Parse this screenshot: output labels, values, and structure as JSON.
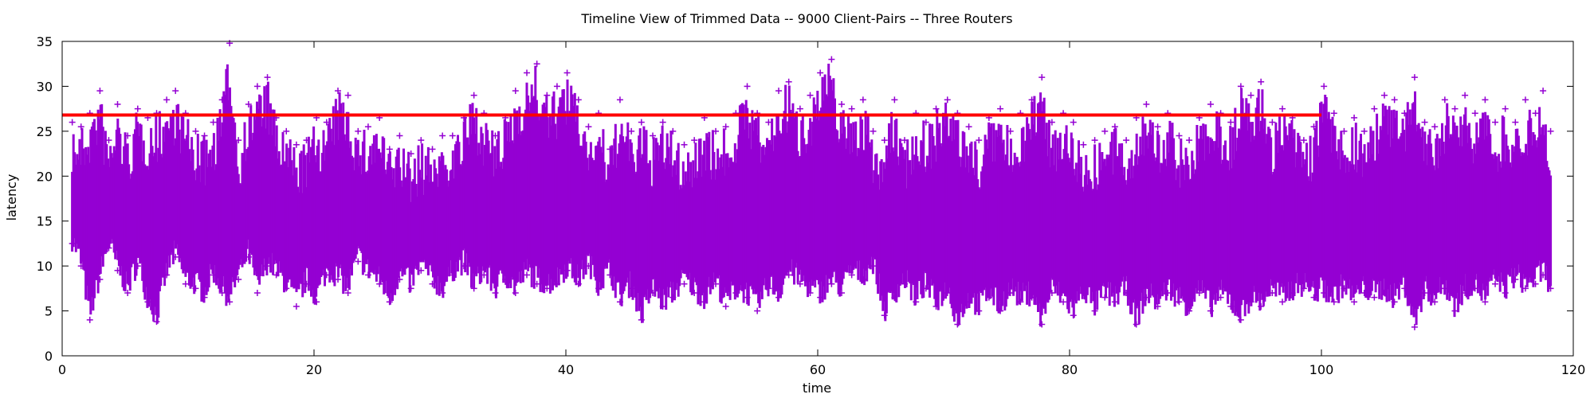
{
  "chart_data": {
    "type": "scatter",
    "title": "Timeline View of Trimmed Data -- 9000 Client-Pairs -- Three Routers",
    "xlabel": "time",
    "ylabel": "latency",
    "xlim": [
      0,
      120
    ],
    "ylim": [
      0,
      35
    ],
    "xticks": [
      "0",
      "20",
      "40",
      "60",
      "80",
      "100",
      "120"
    ],
    "yticks": [
      "0",
      "5",
      "10",
      "15",
      "20",
      "25",
      "30",
      "35"
    ],
    "grid": false,
    "legend": "none",
    "colors": {
      "points": "#9400d3",
      "reference_line": "#ff0000"
    },
    "marker": "plus",
    "x_extent": [
      0.8,
      118.2
    ],
    "reference_line": {
      "y": 26.8,
      "x_start": 0,
      "x_end": 100
    },
    "column_samples": [
      [
        0.8,
        12.5,
        26.0
      ],
      [
        1.5,
        10.0,
        25.5
      ],
      [
        2.2,
        4.0,
        27.0
      ],
      [
        3.0,
        8.5,
        29.5
      ],
      [
        3.7,
        12.0,
        24.0
      ],
      [
        4.4,
        9.5,
        28.0
      ],
      [
        5.2,
        7.0,
        24.5
      ],
      [
        6.0,
        10.0,
        27.5
      ],
      [
        6.8,
        6.0,
        26.5
      ],
      [
        7.5,
        3.8,
        27.0
      ],
      [
        8.3,
        9.0,
        28.5
      ],
      [
        9.0,
        11.0,
        29.5
      ],
      [
        9.8,
        8.0,
        27.0
      ],
      [
        10.6,
        7.5,
        25.0
      ],
      [
        11.3,
        6.5,
        24.5
      ],
      [
        12.0,
        9.0,
        26.0
      ],
      [
        12.7,
        7.0,
        28.5
      ],
      [
        13.3,
        6.0,
        34.8
      ],
      [
        14.0,
        8.5,
        24.0
      ],
      [
        14.8,
        11.0,
        28.0
      ],
      [
        15.5,
        7.0,
        30.0
      ],
      [
        16.3,
        10.0,
        31.0
      ],
      [
        17.0,
        9.0,
        26.5
      ],
      [
        17.8,
        7.5,
        25.0
      ],
      [
        18.6,
        5.5,
        23.5
      ],
      [
        19.4,
        8.0,
        24.0
      ],
      [
        20.2,
        6.0,
        26.5
      ],
      [
        21.0,
        9.0,
        26.0
      ],
      [
        21.9,
        8.5,
        29.5
      ],
      [
        22.7,
        7.0,
        29.0
      ],
      [
        23.5,
        10.5,
        25.0
      ],
      [
        24.3,
        9.0,
        25.5
      ],
      [
        25.2,
        8.0,
        26.5
      ],
      [
        26.0,
        6.0,
        23.0
      ],
      [
        26.8,
        8.5,
        24.5
      ],
      [
        27.7,
        7.5,
        22.5
      ],
      [
        28.5,
        9.5,
        24.0
      ],
      [
        29.4,
        8.0,
        23.0
      ],
      [
        30.2,
        7.0,
        24.5
      ],
      [
        31.0,
        9.0,
        24.5
      ],
      [
        31.9,
        10.0,
        26.5
      ],
      [
        32.7,
        7.5,
        29.0
      ],
      [
        33.5,
        9.0,
        27.0
      ],
      [
        34.4,
        7.0,
        24.5
      ],
      [
        35.2,
        8.5,
        26.5
      ],
      [
        36.0,
        7.0,
        29.5
      ],
      [
        36.9,
        9.0,
        31.5
      ],
      [
        37.7,
        8.0,
        32.5
      ],
      [
        38.5,
        7.5,
        29.0
      ],
      [
        39.3,
        8.0,
        30.0
      ],
      [
        40.1,
        9.5,
        31.5
      ],
      [
        41.0,
        8.0,
        28.5
      ],
      [
        41.8,
        10.0,
        25.5
      ],
      [
        42.6,
        7.5,
        27.0
      ],
      [
        43.5,
        9.0,
        23.0
      ],
      [
        44.3,
        6.0,
        28.5
      ],
      [
        45.2,
        7.5,
        25.0
      ],
      [
        46.0,
        4.0,
        26.0
      ],
      [
        46.9,
        7.0,
        24.5
      ],
      [
        47.7,
        5.5,
        26.0
      ],
      [
        48.5,
        6.5,
        25.0
      ],
      [
        49.4,
        8.0,
        23.5
      ],
      [
        50.2,
        7.0,
        24.0
      ],
      [
        51.0,
        6.0,
        26.5
      ],
      [
        51.9,
        8.0,
        25.0
      ],
      [
        52.7,
        5.5,
        25.5
      ],
      [
        53.5,
        7.0,
        27.0
      ],
      [
        54.4,
        6.5,
        30.0
      ],
      [
        55.2,
        5.0,
        27.0
      ],
      [
        56.1,
        7.5,
        26.0
      ],
      [
        56.9,
        6.5,
        29.5
      ],
      [
        57.7,
        9.0,
        30.5
      ],
      [
        58.6,
        8.0,
        27.5
      ],
      [
        59.4,
        7.0,
        29.0
      ],
      [
        60.2,
        6.5,
        31.5
      ],
      [
        61.1,
        8.0,
        33.0
      ],
      [
        61.9,
        7.0,
        28.0
      ],
      [
        62.7,
        9.0,
        27.5
      ],
      [
        63.6,
        8.5,
        28.5
      ],
      [
        64.4,
        10.0,
        25.0
      ],
      [
        65.3,
        4.5,
        24.0
      ],
      [
        66.1,
        6.5,
        28.5
      ],
      [
        66.9,
        8.0,
        24.0
      ],
      [
        67.8,
        6.0,
        27.0
      ],
      [
        68.6,
        7.5,
        26.0
      ],
      [
        69.4,
        5.5,
        27.5
      ],
      [
        70.3,
        7.0,
        28.5
      ],
      [
        71.1,
        3.5,
        27.0
      ],
      [
        72.0,
        6.0,
        25.5
      ],
      [
        72.8,
        5.0,
        24.0
      ],
      [
        73.6,
        6.5,
        26.5
      ],
      [
        74.5,
        5.0,
        27.5
      ],
      [
        75.3,
        7.0,
        25.0
      ],
      [
        76.1,
        6.0,
        27.0
      ],
      [
        77.0,
        6.5,
        28.5
      ],
      [
        77.8,
        3.5,
        31.0
      ],
      [
        78.6,
        7.0,
        26.0
      ],
      [
        79.5,
        6.0,
        27.0
      ],
      [
        80.3,
        4.5,
        26.0
      ],
      [
        81.1,
        7.0,
        23.5
      ],
      [
        82.0,
        5.0,
        24.0
      ],
      [
        82.8,
        6.5,
        25.0
      ],
      [
        83.6,
        6.0,
        25.5
      ],
      [
        84.5,
        7.0,
        24.0
      ],
      [
        85.3,
        3.5,
        26.5
      ],
      [
        86.1,
        6.5,
        28.0
      ],
      [
        87.0,
        5.5,
        25.5
      ],
      [
        87.8,
        7.0,
        27.0
      ],
      [
        88.7,
        6.0,
        24.5
      ],
      [
        89.5,
        5.0,
        24.0
      ],
      [
        90.3,
        7.0,
        26.5
      ],
      [
        91.2,
        5.0,
        28.0
      ],
      [
        92.0,
        6.5,
        27.0
      ],
      [
        92.8,
        5.5,
        26.0
      ],
      [
        93.6,
        4.0,
        30.0
      ],
      [
        94.4,
        6.0,
        29.0
      ],
      [
        95.2,
        5.5,
        30.5
      ],
      [
        96.1,
        7.0,
        26.0
      ],
      [
        96.9,
        6.0,
        27.5
      ],
      [
        97.7,
        7.0,
        26.5
      ],
      [
        98.6,
        7.5,
        24.0
      ],
      [
        99.4,
        6.5,
        25.5
      ],
      [
        100.2,
        7.0,
        30.0
      ],
      [
        101.0,
        6.0,
        27.0
      ],
      [
        101.8,
        7.5,
        25.0
      ],
      [
        102.6,
        6.0,
        26.5
      ],
      [
        103.4,
        7.0,
        25.0
      ],
      [
        104.2,
        6.5,
        27.5
      ],
      [
        105.0,
        7.0,
        29.0
      ],
      [
        105.8,
        6.0,
        28.5
      ],
      [
        106.6,
        7.5,
        27.0
      ],
      [
        107.4,
        3.2,
        31.0
      ],
      [
        108.2,
        7.0,
        26.0
      ],
      [
        109.0,
        6.0,
        25.5
      ],
      [
        109.8,
        7.5,
        28.5
      ],
      [
        110.6,
        5.0,
        27.5
      ],
      [
        111.4,
        7.0,
        29.0
      ],
      [
        112.2,
        7.5,
        27.0
      ],
      [
        113.0,
        6.0,
        28.5
      ],
      [
        113.8,
        8.0,
        26.0
      ],
      [
        114.6,
        7.0,
        27.5
      ],
      [
        115.4,
        8.5,
        26.0
      ],
      [
        116.2,
        7.5,
        28.5
      ],
      [
        117.0,
        8.0,
        27.0
      ],
      [
        117.6,
        9.0,
        29.5
      ],
      [
        118.2,
        7.5,
        25.0
      ]
    ]
  }
}
